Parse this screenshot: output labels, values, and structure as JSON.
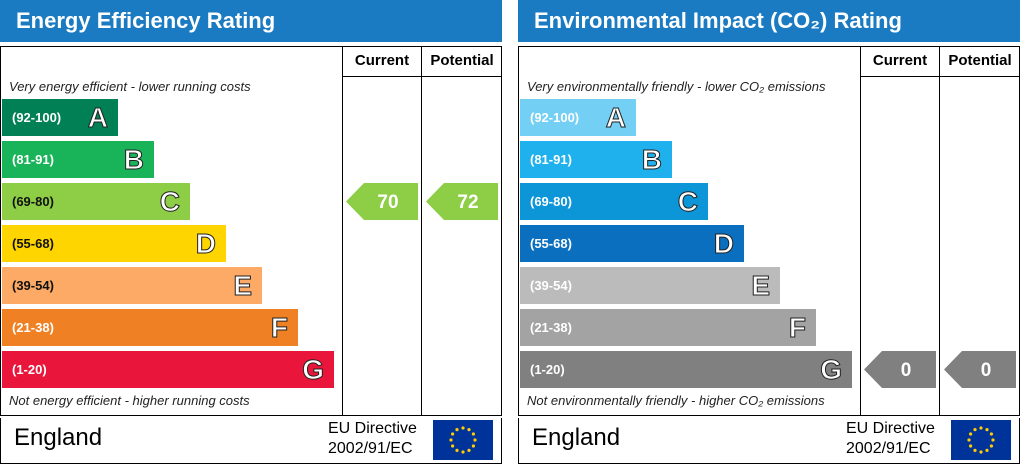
{
  "panels": [
    {
      "title": "Energy Efficiency Rating",
      "columns": [
        "Current",
        "Potential"
      ],
      "top_note": "Very energy efficient - lower running costs",
      "bottom_note": "Not energy efficient - higher running costs",
      "bands": [
        {
          "range": "(92-100)",
          "letter": "A",
          "color": "#008054"
        },
        {
          "range": "(81-91)",
          "letter": "B",
          "color": "#19b459"
        },
        {
          "range": "(69-80)",
          "letter": "C",
          "color": "#8dce46"
        },
        {
          "range": "(55-68)",
          "letter": "D",
          "color": "#ffd500"
        },
        {
          "range": "(39-54)",
          "letter": "E",
          "color": "#fcaa65"
        },
        {
          "range": "(21-38)",
          "letter": "F",
          "color": "#ef8023"
        },
        {
          "range": "(1-20)",
          "letter": "G",
          "color": "#e9153b"
        }
      ],
      "current": 70,
      "potential": 72,
      "country": "England",
      "directive": [
        "EU Directive",
        "2002/91/EC"
      ]
    },
    {
      "title": "Environmental Impact (CO₂) Rating",
      "columns": [
        "Current",
        "Potential"
      ],
      "top_note": "Very environmentally friendly - lower CO₂ emissions",
      "bottom_note": "Not environmentally friendly - higher CO₂ emissions",
      "bands": [
        {
          "range": "(92-100)",
          "letter": "A",
          "color": "#73cff4"
        },
        {
          "range": "(81-91)",
          "letter": "B",
          "color": "#1fb1ee"
        },
        {
          "range": "(69-80)",
          "letter": "C",
          "color": "#0d96d7"
        },
        {
          "range": "(55-68)",
          "letter": "D",
          "color": "#0a6fbe"
        },
        {
          "range": "(39-54)",
          "letter": "E",
          "color": "#bbbbbb"
        },
        {
          "range": "(21-38)",
          "letter": "F",
          "color": "#a3a3a3"
        },
        {
          "range": "(1-20)",
          "letter": "G",
          "color": "#808080"
        }
      ],
      "current": 0,
      "potential": 0,
      "country": "England",
      "directive": [
        "EU Directive",
        "2002/91/EC"
      ]
    }
  ]
}
